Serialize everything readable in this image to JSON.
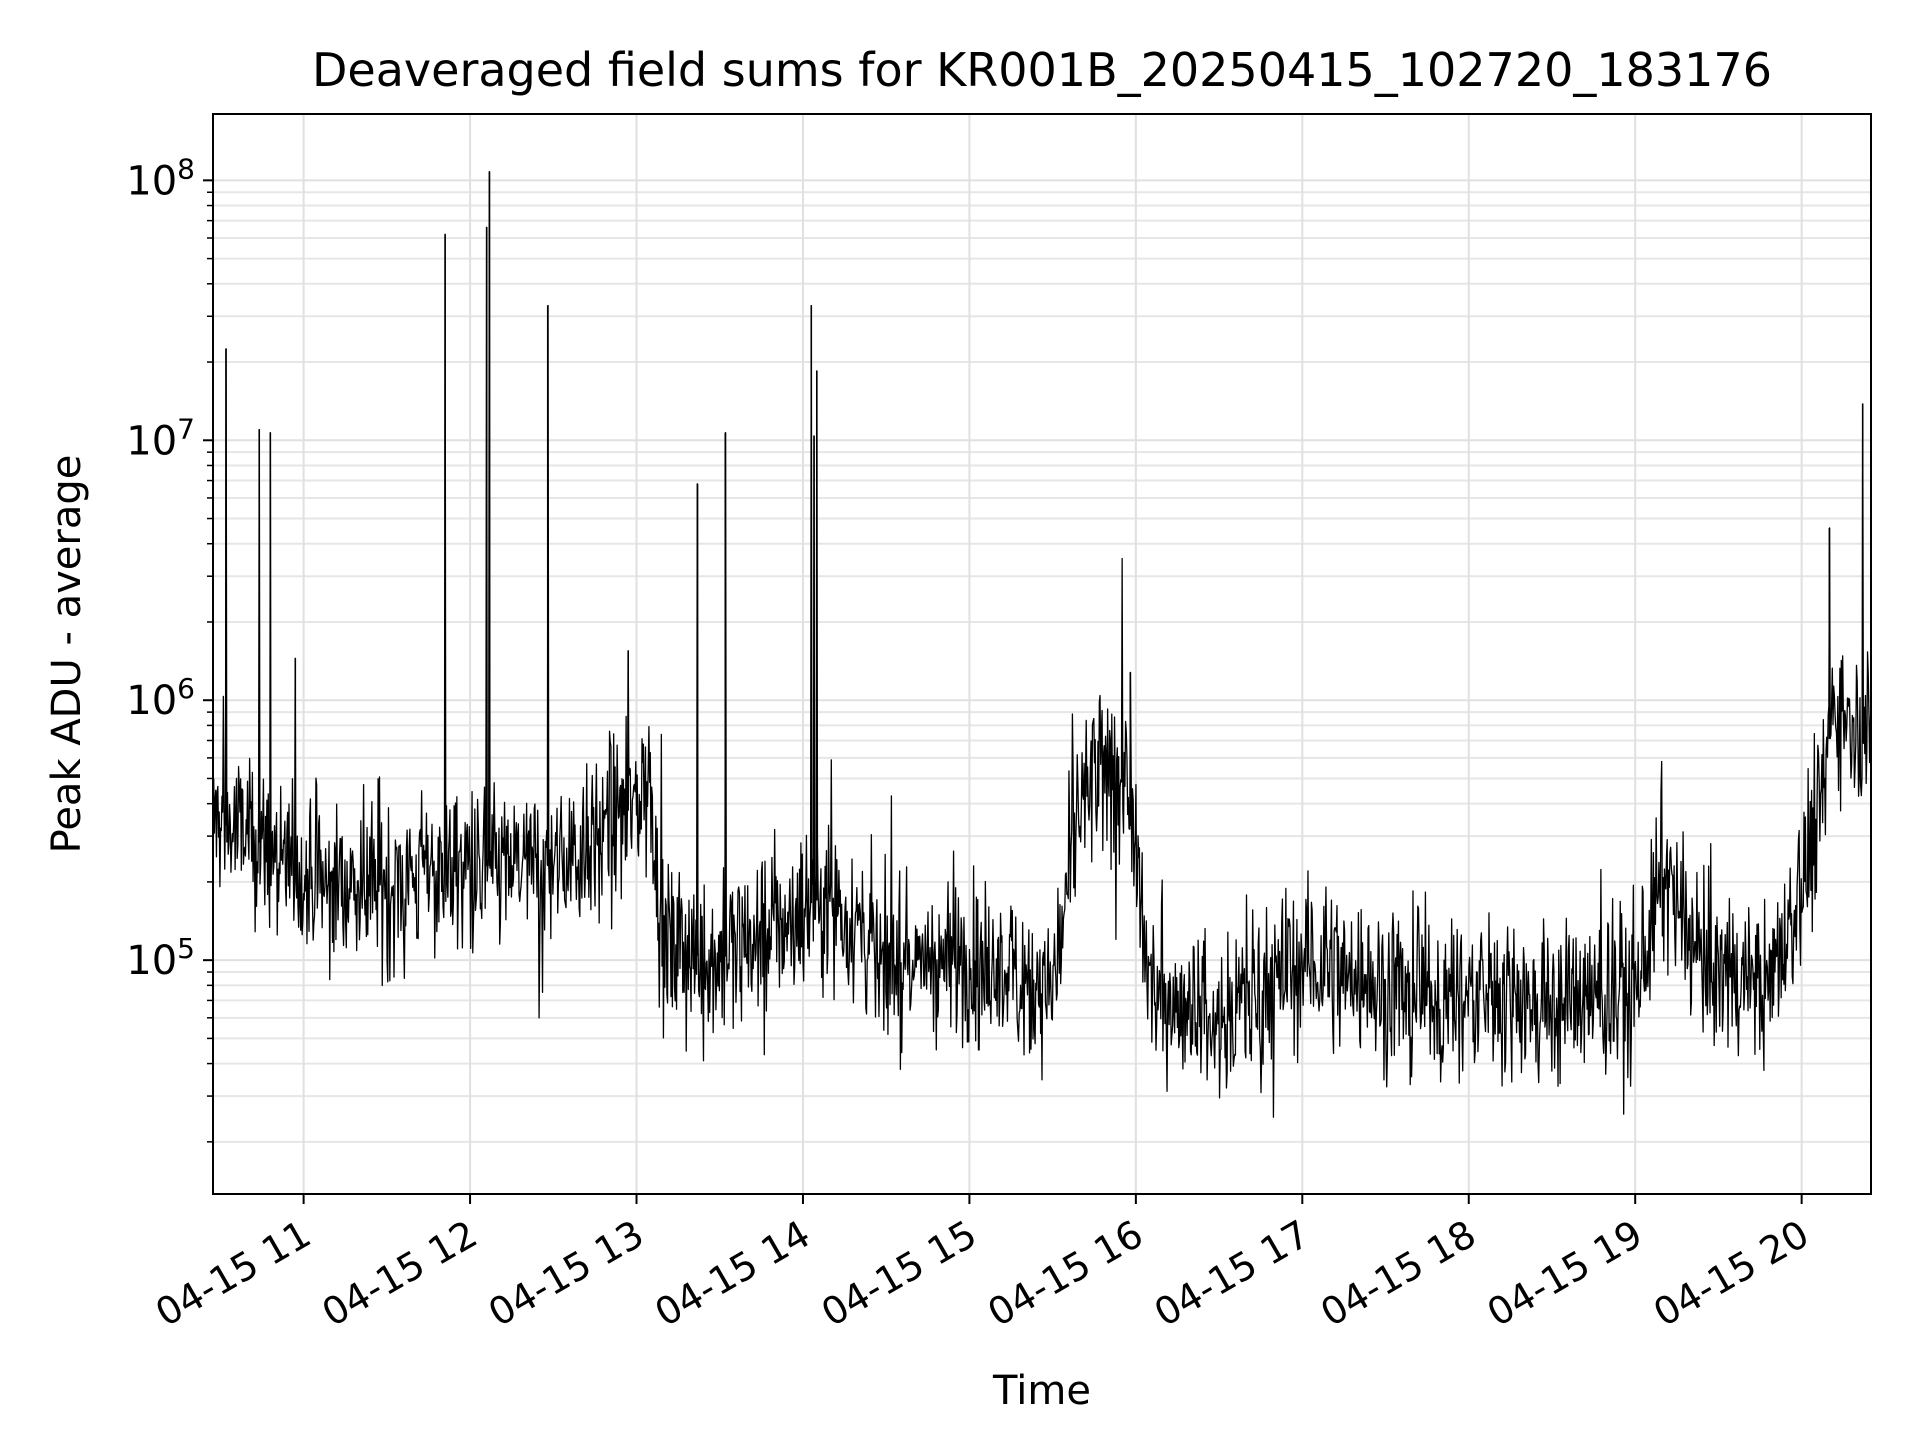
{
  "chart_data": {
    "type": "line",
    "title": "Deaveraged field sums for KR001B_20250415_102720_183176",
    "xlabel": "Time",
    "ylabel": "Peak ADU - average",
    "yscale": "log",
    "ylim": [
      12600,
      180000000
    ],
    "xlim": [
      "2025-04-15 10:27:20",
      "2025-04-15 20:25:00"
    ],
    "grid": "on (major and minor)",
    "legend": "none",
    "line_color": "#000000",
    "x_ticks": [
      {
        "value": "2025-04-15 11:00",
        "label": "04-15 11"
      },
      {
        "value": "2025-04-15 12:00",
        "label": "04-15 12"
      },
      {
        "value": "2025-04-15 13:00",
        "label": "04-15 13"
      },
      {
        "value": "2025-04-15 14:00",
        "label": "04-15 14"
      },
      {
        "value": "2025-04-15 15:00",
        "label": "04-15 15"
      },
      {
        "value": "2025-04-15 16:00",
        "label": "04-15 16"
      },
      {
        "value": "2025-04-15 17:00",
        "label": "04-15 17"
      },
      {
        "value": "2025-04-15 18:00",
        "label": "04-15 18"
      },
      {
        "value": "2025-04-15 19:00",
        "label": "04-15 19"
      },
      {
        "value": "2025-04-15 20:00",
        "label": "04-15 20"
      }
    ],
    "y_ticks": [
      {
        "value": 100000,
        "base": "10",
        "exp": "5"
      },
      {
        "value": 1000000,
        "base": "10",
        "exp": "6"
      },
      {
        "value": 10000000,
        "base": "10",
        "exp": "7"
      },
      {
        "value": 100000000,
        "base": "10",
        "exp": "8"
      }
    ],
    "baseline": [
      [
        "2025-04-15 10:27:20",
        350000
      ],
      [
        "2025-04-15 10:45",
        280000
      ],
      [
        "2025-04-15 11:00",
        200000
      ],
      [
        "2025-04-15 11:30",
        200000
      ],
      [
        "2025-04-15 12:00",
        230000
      ],
      [
        "2025-04-15 12:30",
        230000
      ],
      [
        "2025-04-15 12:55",
        350000
      ],
      [
        "2025-04-15 13:05",
        500000
      ],
      [
        "2025-04-15 13:10",
        110000
      ],
      [
        "2025-04-15 13:30",
        100000
      ],
      [
        "2025-04-15 14:00",
        160000
      ],
      [
        "2025-04-15 14:10",
        180000
      ],
      [
        "2025-04-15 14:30",
        100000
      ],
      [
        "2025-04-15 15:00",
        100000
      ],
      [
        "2025-04-15 15:30",
        80000
      ],
      [
        "2025-04-15 15:40",
        400000
      ],
      [
        "2025-04-15 15:55",
        600000
      ],
      [
        "2025-04-15 16:05",
        80000
      ],
      [
        "2025-04-15 16:30",
        60000
      ],
      [
        "2025-04-15 17:00",
        100000
      ],
      [
        "2025-04-15 17:30",
        80000
      ],
      [
        "2025-04-15 18:00",
        75000
      ],
      [
        "2025-04-15 18:30",
        65000
      ],
      [
        "2025-04-15 19:00",
        75000
      ],
      [
        "2025-04-15 19:10",
        200000
      ],
      [
        "2025-04-15 19:25",
        90000
      ],
      [
        "2025-04-15 19:50",
        80000
      ],
      [
        "2025-04-15 20:05",
        300000
      ],
      [
        "2025-04-15 20:12",
        1000000
      ],
      [
        "2025-04-15 20:25",
        750000
      ]
    ],
    "spikes": [
      [
        "2025-04-15 10:32",
        22500000
      ],
      [
        "2025-04-15 10:44",
        11000000
      ],
      [
        "2025-04-15 10:48",
        10700000
      ],
      [
        "2025-04-15 10:57",
        1450000
      ],
      [
        "2025-04-15 11:51",
        62000000
      ],
      [
        "2025-04-15 12:06",
        66000000
      ],
      [
        "2025-04-15 12:07",
        108000000
      ],
      [
        "2025-04-15 12:28",
        33000000
      ],
      [
        "2025-04-15 12:57",
        1550000
      ],
      [
        "2025-04-15 13:22",
        6800000
      ],
      [
        "2025-04-15 13:32",
        10700000
      ],
      [
        "2025-04-15 14:03",
        33000000
      ],
      [
        "2025-04-15 14:04",
        10400000
      ],
      [
        "2025-04-15 14:05",
        18500000
      ],
      [
        "2025-04-15 15:58",
        1280000
      ],
      [
        "2025-04-15 20:10",
        4600000
      ],
      [
        "2025-04-15 20:22",
        13800000
      ]
    ]
  }
}
